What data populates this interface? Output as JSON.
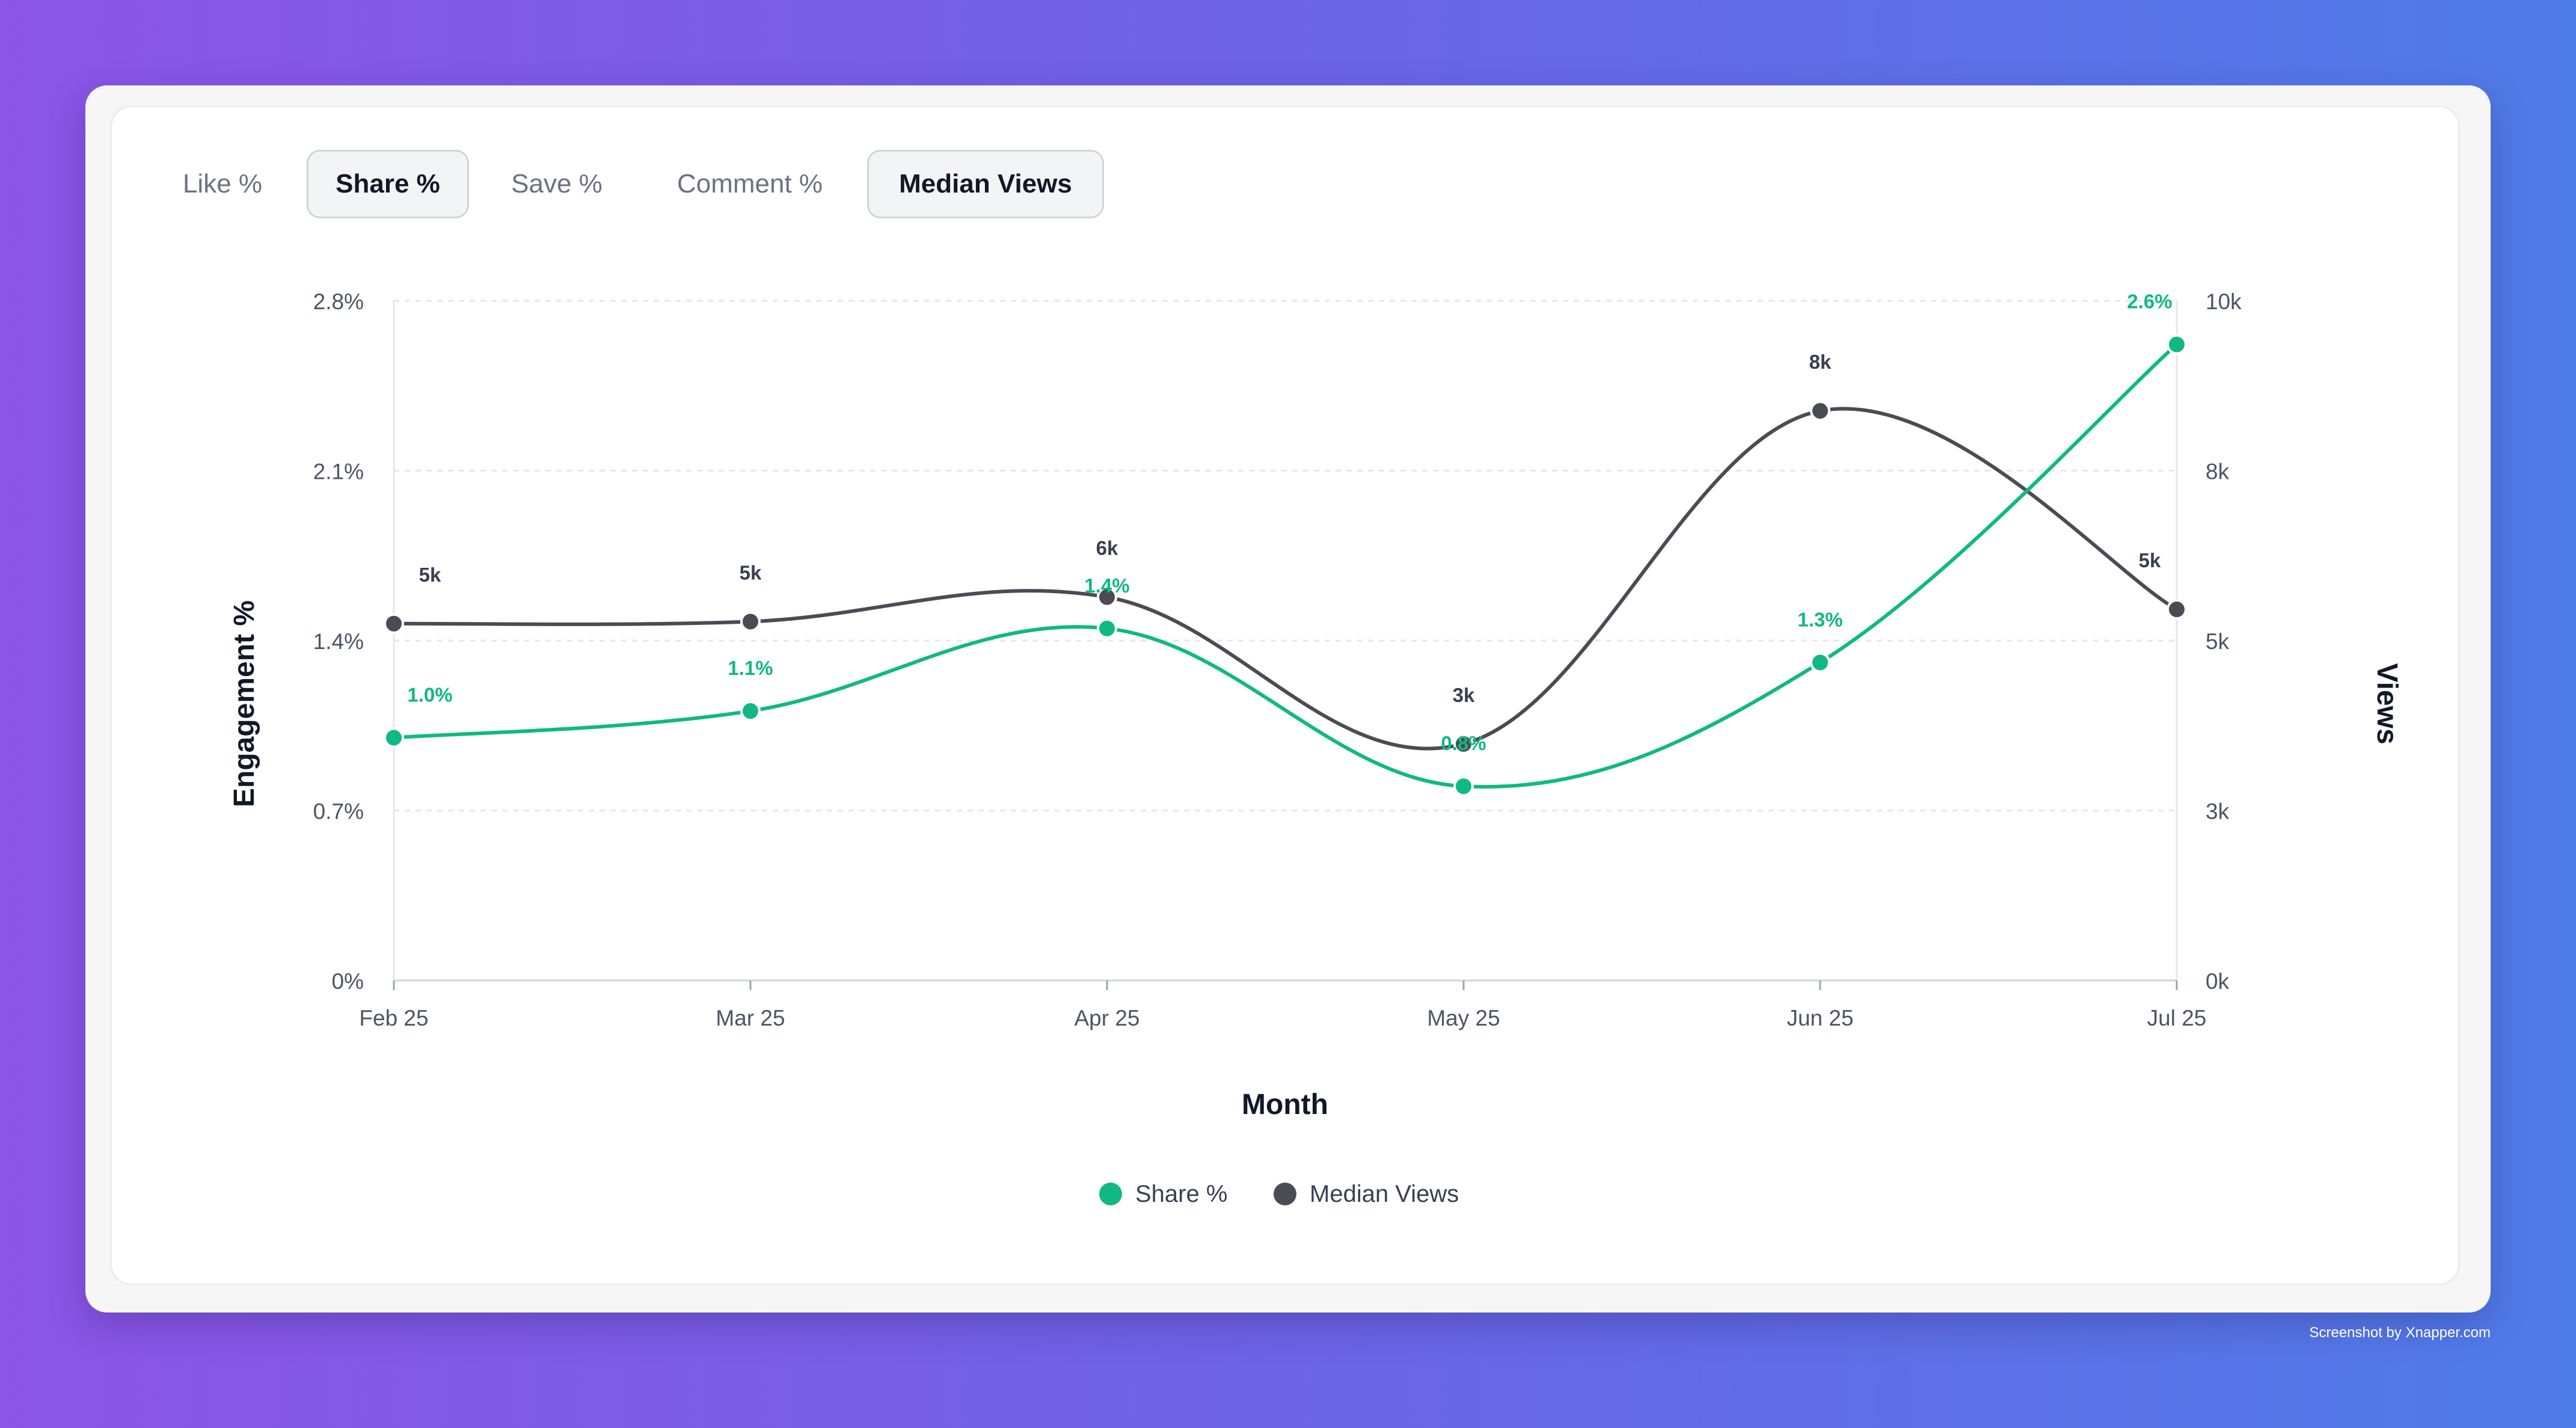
{
  "tabs": [
    {
      "label": "Like %",
      "active": false
    },
    {
      "label": "Share %",
      "active": true
    },
    {
      "label": "Save %",
      "active": false
    },
    {
      "label": "Comment %",
      "active": false
    },
    {
      "label": "Median Views",
      "active": true
    }
  ],
  "colors": {
    "share": "#10b981",
    "views": "#4b4b55",
    "grid": "#e5e7eb",
    "axis_text": "#4b5563"
  },
  "watermark": "Screenshot by Xnapper.com",
  "chart_data": {
    "type": "line",
    "xlabel": "Month",
    "ylabel_left": "Engagement %",
    "ylabel_right": "Views",
    "categories": [
      "Feb 25",
      "Mar 25",
      "Apr 25",
      "May 25",
      "Jun 25",
      "Jul 25"
    ],
    "y_left": {
      "ticks": [
        "0%",
        "0.7%",
        "1.4%",
        "2.1%",
        "2.8%"
      ],
      "range": [
        0,
        2.8
      ]
    },
    "y_right": {
      "ticks": [
        "0k",
        "3k",
        "5k",
        "8k",
        "10k"
      ],
      "range": [
        0,
        10000
      ]
    },
    "grid": true,
    "legend_position": "bottom-center",
    "series": [
      {
        "name": "Share %",
        "axis": "left",
        "values": [
          1.0,
          1.11,
          1.45,
          0.8,
          1.31,
          2.62
        ],
        "labels": [
          "1.0%",
          "1.1%",
          "1.4%",
          "0.8%",
          "1.3%",
          "2.6%"
        ]
      },
      {
        "name": "Median Views",
        "axis": "right",
        "values": [
          5250,
          5280,
          5640,
          3480,
          8380,
          5460
        ],
        "labels": [
          "5k",
          "5k",
          "6k",
          "3k",
          "8k",
          "5k"
        ]
      }
    ]
  }
}
